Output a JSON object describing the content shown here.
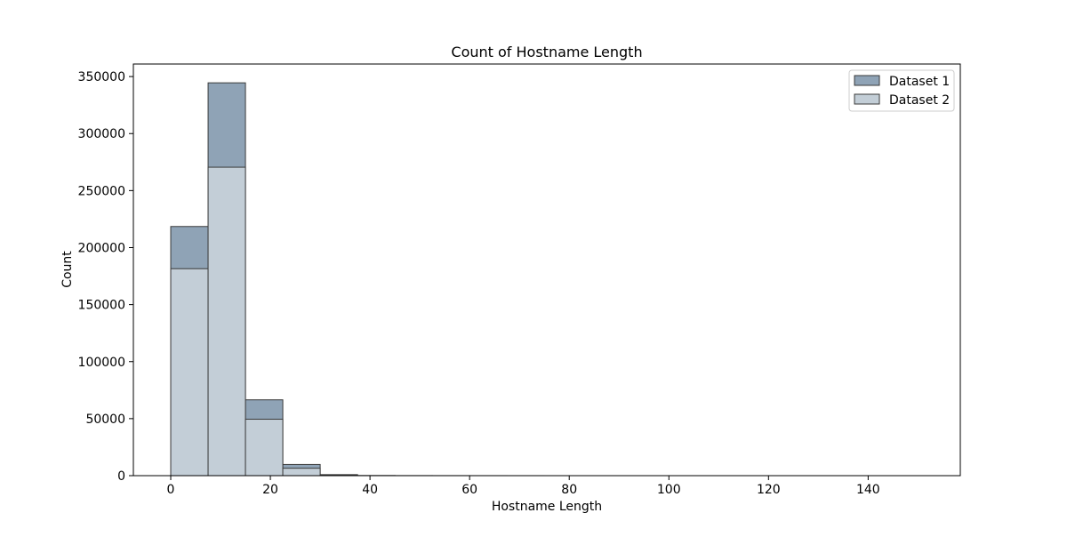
{
  "chart_data": {
    "type": "bar",
    "title": "Count of Hostname Length",
    "xlabel": "Hostname Length",
    "ylabel": "Count",
    "xlim": [
      -7.5,
      158.5
    ],
    "ylim": [
      0,
      361000
    ],
    "bin_edges": [
      0,
      7.5,
      15,
      22.5,
      30,
      37.5,
      45,
      52.5,
      60,
      67.5,
      75,
      82.5,
      90,
      97.5,
      105,
      112.5,
      120,
      127.5,
      135,
      142.5,
      150
    ],
    "xticks": [
      0,
      20,
      40,
      60,
      80,
      100,
      120,
      140
    ],
    "yticks": [
      0,
      50000,
      100000,
      150000,
      200000,
      250000,
      300000,
      350000
    ],
    "legend_position": "upper right",
    "grid": false,
    "series": [
      {
        "name": "Dataset 1",
        "color": "#8fa3b6",
        "edge_color": "#3a3a3a",
        "values": [
          218500,
          344500,
          66500,
          9800,
          900,
          100,
          40,
          20,
          10,
          5,
          3,
          2,
          2,
          1,
          1,
          1,
          1,
          1,
          1,
          1
        ]
      },
      {
        "name": "Dataset 2",
        "color": "#c3ced7",
        "edge_color": "#3a3a3a",
        "values": [
          181500,
          270500,
          49500,
          6500,
          600,
          60,
          20,
          10,
          5,
          3,
          2,
          1,
          1,
          1,
          1,
          1,
          1,
          1,
          1,
          1
        ]
      }
    ]
  }
}
